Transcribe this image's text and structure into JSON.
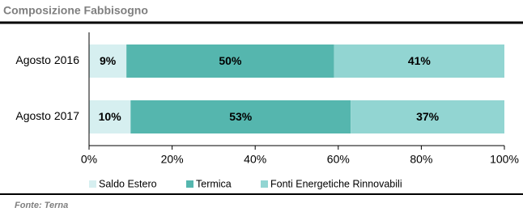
{
  "chart_data": {
    "type": "stacked-bar-horizontal",
    "title": "Composizione Fabbisogno",
    "categories": [
      "Agosto 2016",
      "Agosto 2017"
    ],
    "series": [
      {
        "name": "Saldo Estero",
        "color": "#d6eff0",
        "values": [
          9,
          10
        ],
        "value_labels": [
          "9%",
          "10%"
        ]
      },
      {
        "name": "Termica",
        "color": "#55b6ae",
        "values": [
          50,
          53
        ],
        "value_labels": [
          "50%",
          "53%"
        ]
      },
      {
        "name": "Fonti Energetiche Rinnovabili",
        "color": "#92d5d2",
        "values": [
          41,
          37
        ],
        "value_labels": [
          "41%",
          "37%"
        ]
      }
    ],
    "xlim": [
      0,
      100
    ],
    "xticks": [
      {
        "value": 0,
        "label": "0%"
      },
      {
        "value": 20,
        "label": "20%"
      },
      {
        "value": 40,
        "label": "40%"
      },
      {
        "value": 60,
        "label": "60%"
      },
      {
        "value": 80,
        "label": "80%"
      },
      {
        "value": 100,
        "label": "100%"
      }
    ],
    "source": "Fonte: Terna"
  }
}
